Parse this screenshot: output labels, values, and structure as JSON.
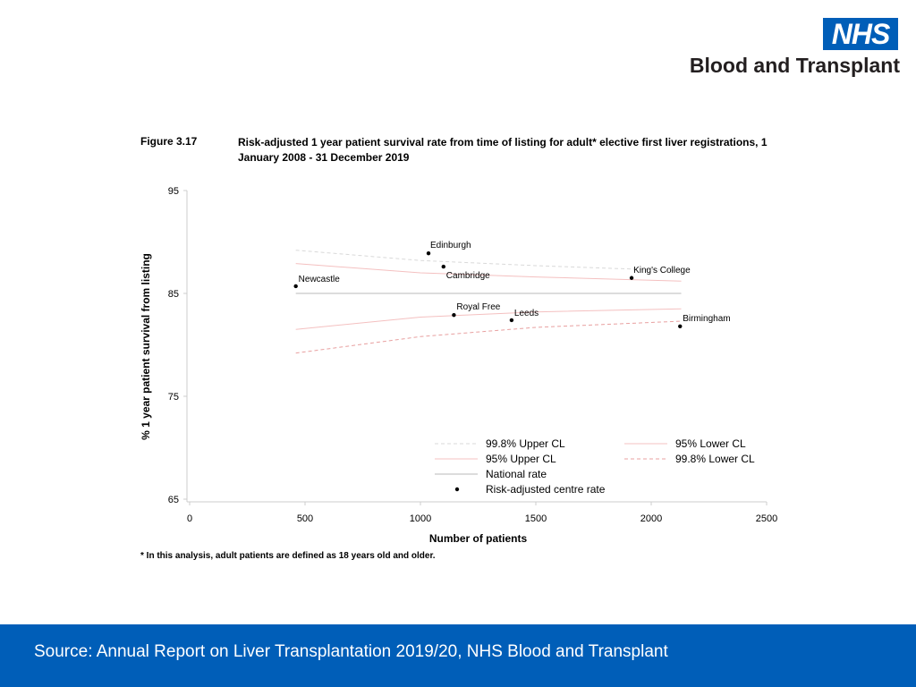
{
  "brand": {
    "logo_text": "NHS",
    "name": "Blood and Transplant"
  },
  "figure": {
    "number": "Figure 3.17",
    "title": "Risk-adjusted 1 year patient survival rate from time of listing for adult* elective first liver registrations, 1 January 2008 - 31 December 2019"
  },
  "footnote": "* In this analysis, adult patients are defined as 18 years old and older.",
  "footer": {
    "source": "Source: Annual Report on Liver Transplantation 2019/20, NHS Blood and Transplant"
  },
  "chart_data": {
    "type": "scatter",
    "xlabel": "Number of patients",
    "ylabel": "% 1 year patient survival from listing",
    "xlim": [
      0,
      2500
    ],
    "ylim": [
      65,
      95
    ],
    "xticks": [
      0,
      500,
      1000,
      1500,
      2000,
      2500
    ],
    "yticks": [
      65,
      75,
      85,
      95
    ],
    "legend_position": "bottom-right",
    "national_rate": 85,
    "x_range": [
      460,
      2130
    ],
    "points": [
      {
        "label": "Newcastle",
        "x": 460,
        "y": 85.7
      },
      {
        "label": "Edinburgh",
        "x": 1035,
        "y": 88.9
      },
      {
        "label": "Cambridge",
        "x": 1100,
        "y": 87.6
      },
      {
        "label": "Royal Free",
        "x": 1145,
        "y": 82.9
      },
      {
        "label": "Leeds",
        "x": 1395,
        "y": 82.4
      },
      {
        "label": "King's College",
        "x": 1915,
        "y": 86.5
      },
      {
        "label": "Birmingham",
        "x": 2125,
        "y": 81.8
      }
    ],
    "series": [
      {
        "name": "99.8% Upper CL",
        "color": "#d9d9d9",
        "dash": "4,3",
        "x": [
          460,
          1000,
          1500,
          2130
        ],
        "y": [
          89.2,
          88.2,
          87.7,
          87.2
        ]
      },
      {
        "name": "95% Upper CL",
        "color": "#f4c0c0",
        "dash": "",
        "x": [
          460,
          1000,
          1500,
          2130
        ],
        "y": [
          87.9,
          87.0,
          86.6,
          86.2
        ]
      },
      {
        "name": "National rate",
        "color": "#b8b8b8",
        "dash": "",
        "x": [
          460,
          2130
        ],
        "y": [
          85,
          85
        ]
      },
      {
        "name": "95% Lower CL",
        "color": "#f4c0c0",
        "dash": "",
        "x": [
          460,
          1000,
          1500,
          2130
        ],
        "y": [
          81.5,
          82.7,
          83.2,
          83.5
        ]
      },
      {
        "name": "99.8% Lower CL",
        "color": "#e8a0a0",
        "dash": "4,3",
        "x": [
          460,
          1000,
          1500,
          2130
        ],
        "y": [
          79.2,
          80.8,
          81.7,
          82.3
        ]
      }
    ],
    "legend": [
      {
        "label": "99.8% Upper CL",
        "kind": "line",
        "color": "#d9d9d9",
        "dash": "4,3",
        "col": 0,
        "row": 0
      },
      {
        "label": "95% Lower CL",
        "kind": "line",
        "color": "#f4c0c0",
        "dash": "",
        "col": 1,
        "row": 0
      },
      {
        "label": "95% Upper CL",
        "kind": "line",
        "color": "#f4c0c0",
        "dash": "",
        "col": 0,
        "row": 1
      },
      {
        "label": "99.8% Lower CL",
        "kind": "line",
        "color": "#e8a0a0",
        "dash": "4,3",
        "col": 1,
        "row": 1
      },
      {
        "label": "National rate",
        "kind": "line",
        "color": "#b8b8b8",
        "dash": "",
        "col": 0,
        "row": 2
      },
      {
        "label": "Risk-adjusted centre rate",
        "kind": "dot",
        "color": "#000000",
        "dash": "",
        "col": 0,
        "row": 3
      }
    ]
  }
}
